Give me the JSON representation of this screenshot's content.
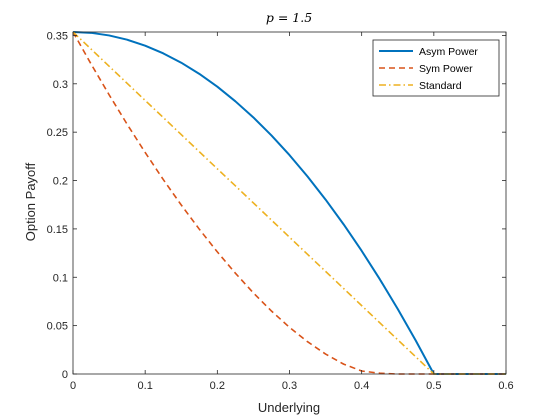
{
  "chart_data": {
    "type": "line",
    "title": "p = 1.5",
    "xlabel": "Underlying",
    "ylabel": "Option Payoff",
    "xlim": [
      0,
      0.6
    ],
    "ylim": [
      0,
      0.35355
    ],
    "xticks": [
      "0",
      "0.1",
      "0.2",
      "0.3",
      "0.4",
      "0.5",
      "0.6"
    ],
    "yticks": [
      "0",
      "0.05",
      "0.1",
      "0.15",
      "0.2",
      "0.25",
      "0.3",
      "0.35"
    ],
    "grid": false,
    "legend_position": "top-right",
    "x": [
      0,
      0.025,
      0.05,
      0.075,
      0.1,
      0.125,
      0.15,
      0.175,
      0.2,
      0.225,
      0.25,
      0.275,
      0.3,
      0.325,
      0.35,
      0.375,
      0.4,
      0.425,
      0.45,
      0.475,
      0.5,
      0.525,
      0.55,
      0.575,
      0.6
    ],
    "series": [
      {
        "name": "Asym Power",
        "color": "#0072BD",
        "dash": "solid",
        "values": [
          0.3536,
          0.3527,
          0.35,
          0.3456,
          0.3394,
          0.3315,
          0.3218,
          0.3103,
          0.297,
          0.2819,
          0.2652,
          0.2466,
          0.2263,
          0.2042,
          0.1803,
          0.1547,
          0.1273,
          0.0981,
          0.0672,
          0.0345,
          0.0,
          0.0,
          0.0,
          0.0,
          0.0
        ]
      },
      {
        "name": "Sym Power",
        "color": "#D95319",
        "dash": "dashed",
        "values": [
          0.3536,
          0.3205,
          0.2887,
          0.2582,
          0.229,
          0.2011,
          0.1747,
          0.1497,
          0.1262,
          0.1042,
          0.0838,
          0.0651,
          0.0482,
          0.0334,
          0.0206,
          0.0102,
          0.0031,
          0.0008,
          0.0,
          0.0,
          0.0,
          0.0,
          0.0,
          0.0,
          0.0
        ]
      },
      {
        "name": "Standard",
        "color": "#EDB120",
        "dash": "dashdot",
        "values": [
          0.3536,
          0.3359,
          0.3182,
          0.3005,
          0.2828,
          0.2652,
          0.2475,
          0.2298,
          0.2121,
          0.1945,
          0.1768,
          0.1591,
          0.1414,
          0.1237,
          0.1061,
          0.0884,
          0.0707,
          0.053,
          0.0354,
          0.0177,
          0.0,
          0.0,
          0.0,
          0.0,
          0.0
        ]
      }
    ]
  }
}
